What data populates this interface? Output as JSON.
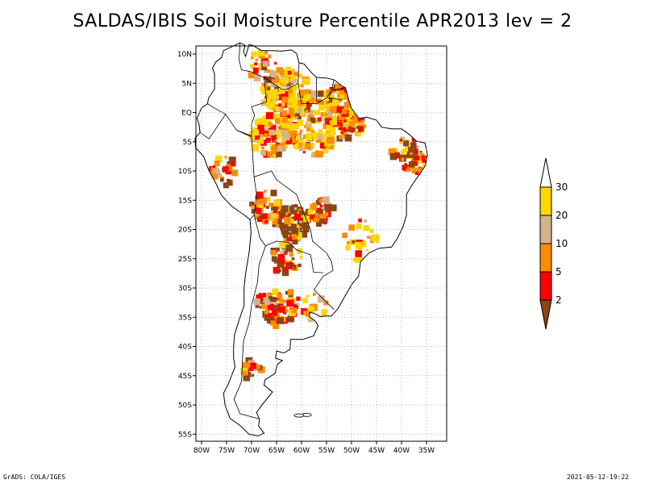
{
  "title": "SALDAS/IBIS Soil Moisture Percentile APR2013 lev = 2",
  "map": {
    "region": "South America",
    "lon_range": [
      -81,
      -31
    ],
    "lat_range": [
      -56,
      11
    ],
    "lat_ticks": [
      {
        "lat": 10,
        "label": "10N"
      },
      {
        "lat": 5,
        "label": "5N"
      },
      {
        "lat": 0,
        "label": "EQ"
      },
      {
        "lat": -5,
        "label": "5S"
      },
      {
        "lat": -10,
        "label": "10S"
      },
      {
        "lat": -15,
        "label": "15S"
      },
      {
        "lat": -20,
        "label": "20S"
      },
      {
        "lat": -25,
        "label": "25S"
      },
      {
        "lat": -30,
        "label": "30S"
      },
      {
        "lat": -35,
        "label": "35S"
      },
      {
        "lat": -40,
        "label": "40S"
      },
      {
        "lat": -45,
        "label": "45S"
      },
      {
        "lat": -50,
        "label": "50S"
      },
      {
        "lat": -55,
        "label": "55S"
      }
    ],
    "lon_ticks": [
      {
        "lon": -80,
        "label": "80W"
      },
      {
        "lon": -75,
        "label": "75W"
      },
      {
        "lon": -70,
        "label": "70W"
      },
      {
        "lon": -65,
        "label": "65W"
      },
      {
        "lon": -60,
        "label": "60W"
      },
      {
        "lon": -55,
        "label": "55W"
      },
      {
        "lon": -50,
        "label": "50W"
      },
      {
        "lon": -45,
        "label": "45W"
      },
      {
        "lon": -40,
        "label": "40W"
      },
      {
        "lon": -35,
        "label": "35W"
      }
    ],
    "grid": true
  },
  "colorbar": {
    "levels": [
      "2",
      "5",
      "10",
      "20",
      "30"
    ],
    "colors": {
      "lt2": "#8b4513",
      "2to5": "#ff0000",
      "5to10": "#ff8c00",
      "10to20": "#d2b48c",
      "20to30": "#ffd700",
      "gt30": "#ffffff"
    }
  },
  "footer": {
    "left": "GrADS: COLA/IGES",
    "right": "2021-05-12-19:22"
  }
}
